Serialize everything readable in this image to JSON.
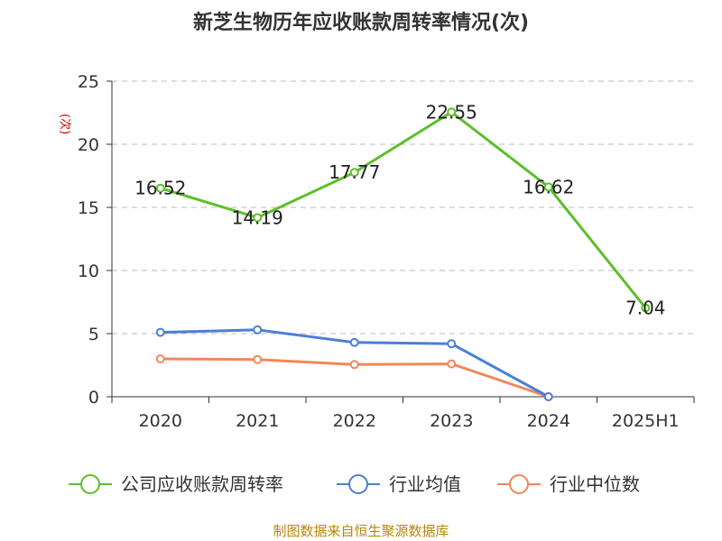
{
  "chart_data": {
    "type": "line",
    "title": "新芝生物历年应收账款周转率情况(次)",
    "ylabel": "(次)",
    "categories": [
      "2020",
      "2021",
      "2022",
      "2023",
      "2024",
      "2025H1"
    ],
    "yticks": [
      "0",
      "5",
      "10",
      "15",
      "20",
      "25"
    ],
    "ylim": [
      0,
      25
    ],
    "grid": true,
    "legend_position": "bottom",
    "series": [
      {
        "name": "公司应收账款周转率",
        "color": "#5cbf2a",
        "values": [
          16.52,
          14.19,
          17.77,
          22.55,
          16.62,
          7.04
        ],
        "labels": [
          "16.52",
          "14.19",
          "17.77",
          "22.55",
          "16.62",
          "7.04"
        ]
      },
      {
        "name": "行业均值",
        "color": "#4a7fd6",
        "values": [
          5.1,
          5.3,
          4.3,
          4.2,
          0,
          null
        ],
        "labels": []
      },
      {
        "name": "行业中位数",
        "color": "#f0885a",
        "values": [
          3.0,
          2.95,
          2.55,
          2.6,
          0,
          null
        ],
        "labels": []
      }
    ]
  },
  "footer": {
    "source": "制图数据来自恒生聚源数据库"
  }
}
